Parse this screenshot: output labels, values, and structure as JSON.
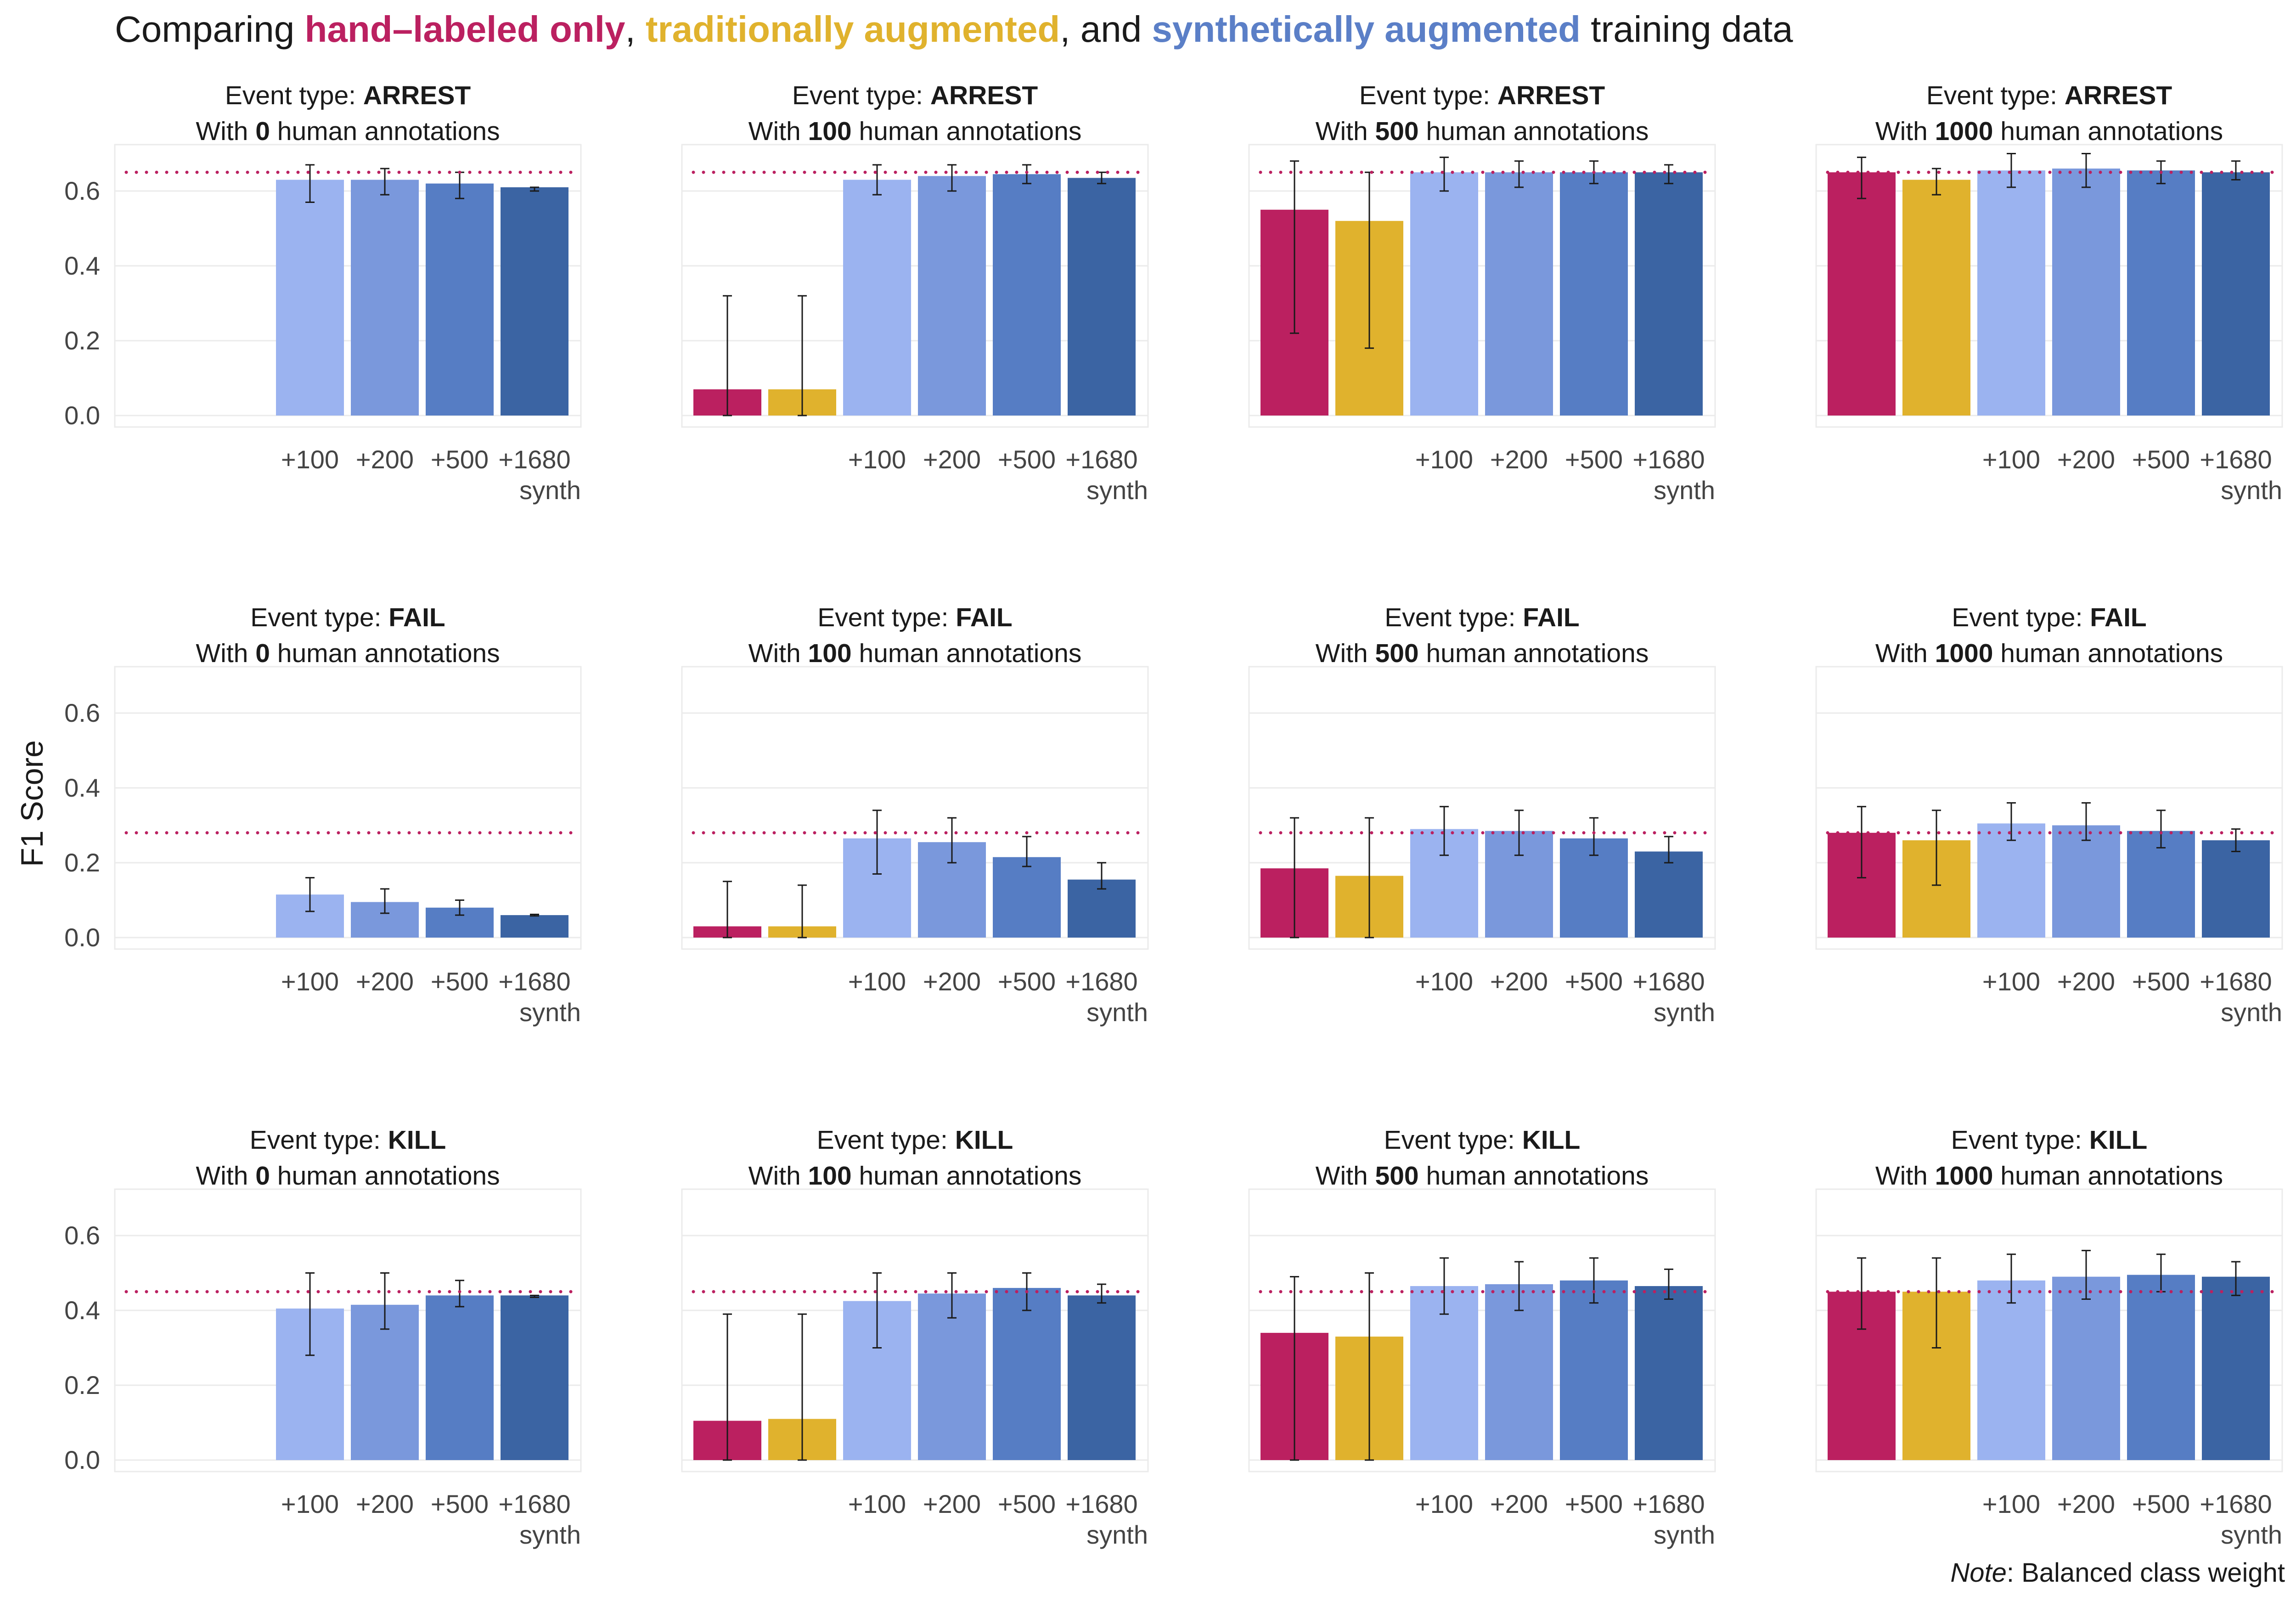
{
  "header": {
    "title_prefix": "Comparing ",
    "title_hand": "hand–labeled only",
    "title_sep1": ", ",
    "title_trad": "traditionally augmented",
    "title_sep2": ", and ",
    "title_synth": "synthetically augmented",
    "title_suffix": " training data"
  },
  "colors": {
    "hand": "#bb2060",
    "trad": "#e0b22d",
    "synth100": "#9bb3f0",
    "synth200": "#7a98dc",
    "synth500": "#567dc4",
    "synth1680": "#3b64a3",
    "baseline": "#bb2060",
    "error": "#1a1a1a"
  },
  "note": {
    "label": "Note",
    "text": ": Balanced class weight"
  },
  "chart_data": {
    "type": "bar",
    "ylabel": "F1 Score",
    "ylim": [
      0,
      0.7
    ],
    "yticks": [
      0.0,
      0.2,
      0.4,
      0.6
    ],
    "ytick_labels": [
      "0.0",
      "0.2",
      "0.4",
      "0.6"
    ],
    "categories": [
      "",
      "",
      "+100",
      "+200",
      "+500",
      "+1680"
    ],
    "x_caption": "synth",
    "panel_title_prefix": "Event type: ",
    "panel_subtitle_prefix": "With ",
    "panel_subtitle_suffix": " human annotations",
    "grid": true,
    "baseline_style": "dotted",
    "panels": [
      {
        "event": "ARREST",
        "annotations": "0",
        "baseline": 0.65,
        "values": [
          null,
          null,
          0.63,
          0.63,
          0.62,
          0.61
        ],
        "errors": [
          null,
          null,
          [
            0.57,
            0.67
          ],
          [
            0.59,
            0.66
          ],
          [
            0.58,
            0.65
          ],
          [
            0.6,
            0.61
          ]
        ]
      },
      {
        "event": "ARREST",
        "annotations": "100",
        "baseline": 0.65,
        "values": [
          0.07,
          0.07,
          0.63,
          0.64,
          0.645,
          0.635
        ],
        "errors": [
          [
            0.0,
            0.32
          ],
          [
            0.0,
            0.32
          ],
          [
            0.59,
            0.67
          ],
          [
            0.6,
            0.67
          ],
          [
            0.62,
            0.67
          ],
          [
            0.62,
            0.65
          ]
        ]
      },
      {
        "event": "ARREST",
        "annotations": "500",
        "baseline": 0.65,
        "values": [
          0.55,
          0.52,
          0.65,
          0.65,
          0.65,
          0.65
        ],
        "errors": [
          [
            0.22,
            0.68
          ],
          [
            0.18,
            0.65
          ],
          [
            0.6,
            0.69
          ],
          [
            0.61,
            0.68
          ],
          [
            0.62,
            0.68
          ],
          [
            0.62,
            0.67
          ]
        ]
      },
      {
        "event": "ARREST",
        "annotations": "1000",
        "baseline": 0.65,
        "values": [
          0.65,
          0.63,
          0.655,
          0.66,
          0.655,
          0.65
        ],
        "errors": [
          [
            0.58,
            0.69
          ],
          [
            0.59,
            0.66
          ],
          [
            0.61,
            0.7
          ],
          [
            0.61,
            0.7
          ],
          [
            0.62,
            0.68
          ],
          [
            0.63,
            0.68
          ]
        ]
      },
      {
        "event": "FAIL",
        "annotations": "0",
        "baseline": 0.28,
        "values": [
          null,
          null,
          0.115,
          0.095,
          0.08,
          0.06
        ],
        "errors": [
          null,
          null,
          [
            0.07,
            0.16
          ],
          [
            0.065,
            0.13
          ],
          [
            0.06,
            0.1
          ],
          [
            0.058,
            0.062
          ]
        ]
      },
      {
        "event": "FAIL",
        "annotations": "100",
        "baseline": 0.28,
        "values": [
          0.03,
          0.03,
          0.265,
          0.255,
          0.215,
          0.155
        ],
        "errors": [
          [
            0.0,
            0.15
          ],
          [
            0.0,
            0.14
          ],
          [
            0.17,
            0.34
          ],
          [
            0.2,
            0.32
          ],
          [
            0.19,
            0.27
          ],
          [
            0.13,
            0.2
          ]
        ]
      },
      {
        "event": "FAIL",
        "annotations": "500",
        "baseline": 0.28,
        "values": [
          0.185,
          0.165,
          0.29,
          0.285,
          0.265,
          0.23
        ],
        "errors": [
          [
            0.0,
            0.32
          ],
          [
            0.0,
            0.32
          ],
          [
            0.22,
            0.35
          ],
          [
            0.22,
            0.34
          ],
          [
            0.22,
            0.32
          ],
          [
            0.2,
            0.27
          ]
        ]
      },
      {
        "event": "FAIL",
        "annotations": "1000",
        "baseline": 0.28,
        "values": [
          0.28,
          0.26,
          0.305,
          0.3,
          0.285,
          0.26
        ],
        "errors": [
          [
            0.16,
            0.35
          ],
          [
            0.14,
            0.34
          ],
          [
            0.26,
            0.36
          ],
          [
            0.26,
            0.36
          ],
          [
            0.24,
            0.34
          ],
          [
            0.23,
            0.29
          ]
        ]
      },
      {
        "event": "KILL",
        "annotations": "0",
        "baseline": 0.45,
        "values": [
          null,
          null,
          0.405,
          0.415,
          0.44,
          0.44
        ],
        "errors": [
          null,
          null,
          [
            0.28,
            0.5
          ],
          [
            0.35,
            0.5
          ],
          [
            0.41,
            0.48
          ],
          [
            0.435,
            0.44
          ]
        ]
      },
      {
        "event": "KILL",
        "annotations": "100",
        "baseline": 0.45,
        "values": [
          0.105,
          0.11,
          0.425,
          0.445,
          0.46,
          0.44
        ],
        "errors": [
          [
            0.0,
            0.39
          ],
          [
            0.0,
            0.39
          ],
          [
            0.3,
            0.5
          ],
          [
            0.38,
            0.5
          ],
          [
            0.4,
            0.5
          ],
          [
            0.42,
            0.47
          ]
        ]
      },
      {
        "event": "KILL",
        "annotations": "500",
        "baseline": 0.45,
        "values": [
          0.34,
          0.33,
          0.465,
          0.47,
          0.48,
          0.465
        ],
        "errors": [
          [
            0.0,
            0.49
          ],
          [
            0.0,
            0.5
          ],
          [
            0.39,
            0.54
          ],
          [
            0.4,
            0.53
          ],
          [
            0.42,
            0.54
          ],
          [
            0.43,
            0.51
          ]
        ]
      },
      {
        "event": "KILL",
        "annotations": "1000",
        "baseline": 0.45,
        "values": [
          0.45,
          0.45,
          0.48,
          0.49,
          0.495,
          0.49
        ],
        "errors": [
          [
            0.35,
            0.54
          ],
          [
            0.3,
            0.54
          ],
          [
            0.42,
            0.55
          ],
          [
            0.43,
            0.56
          ],
          [
            0.45,
            0.55
          ],
          [
            0.44,
            0.53
          ]
        ]
      }
    ]
  }
}
